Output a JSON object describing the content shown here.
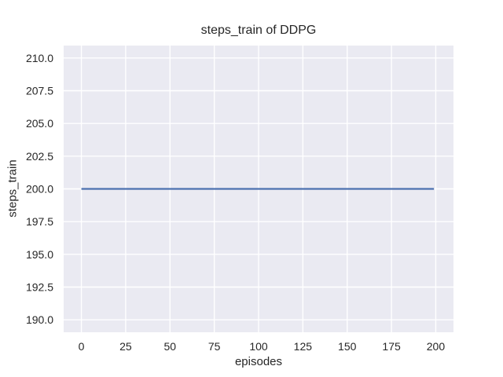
{
  "figure": {
    "background": "#ffffff"
  },
  "chart_data": {
    "type": "line",
    "title": "steps_train of DDPG",
    "xlabel": "episodes",
    "ylabel": "steps_train",
    "xlim": [
      -10,
      210
    ],
    "ylim": [
      189.05,
      210.95
    ],
    "xticks": [
      0,
      25,
      50,
      75,
      100,
      125,
      150,
      175,
      200
    ],
    "xtick_labels": [
      "0",
      "25",
      "50",
      "75",
      "100",
      "125",
      "150",
      "175",
      "200"
    ],
    "yticks": [
      190,
      192.5,
      195,
      197.5,
      200,
      202.5,
      205,
      207.5,
      210
    ],
    "ytick_labels": [
      "190.0",
      "192.5",
      "195.0",
      "197.5",
      "200.0",
      "202.5",
      "205.0",
      "207.5",
      "210.0"
    ],
    "grid": true,
    "legend": "none",
    "style": {
      "axes_background": "#eaeaf2",
      "grid_color": "#ffffff",
      "text_color": "#262626",
      "line_color": "#4c72b0"
    },
    "series": [
      {
        "name": "steps_train",
        "color": "#4c72b0",
        "x": [
          0,
          199
        ],
        "y": [
          200,
          200
        ],
        "description": "constant value 200 across episodes 0 to 199"
      }
    ]
  }
}
